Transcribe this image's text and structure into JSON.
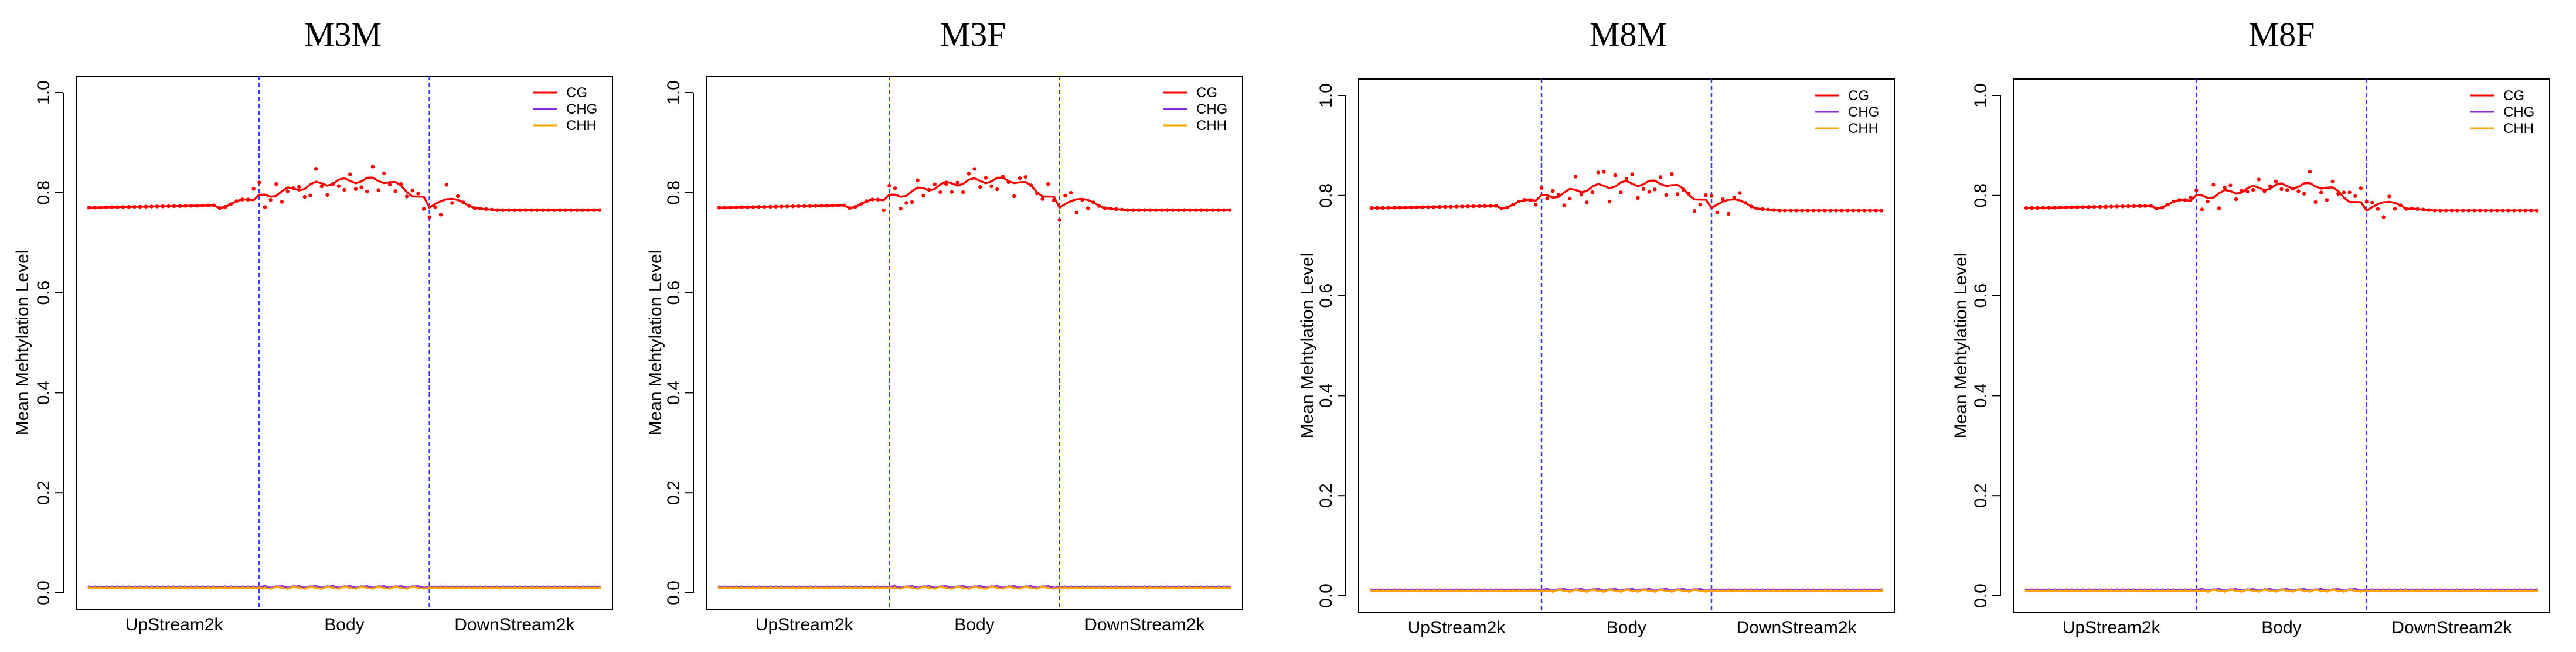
{
  "chart_data": [
    {
      "type": "line",
      "title": "M3M",
      "ylabel": "Mean Mehtylation Level",
      "xlabel": "",
      "ylim": [
        0,
        1
      ],
      "yticks": [
        "0.0",
        "0.2",
        "0.4",
        "0.6",
        "0.8",
        "1.0"
      ],
      "regions": [
        "UpStream2k",
        "Body",
        "DownStream2k"
      ],
      "boundaries_bins": [
        30,
        60
      ],
      "bins": 90,
      "legend": [
        "CG",
        "CHG",
        "CHH"
      ],
      "legend_position": "top-right",
      "colors": {
        "CG": "#ff0000",
        "CHG": "#8a2be2",
        "CHH": "#ffa500",
        "boundary": "#3333ff"
      },
      "series": [
        {
          "name": "CG",
          "upstream_level": 0.77,
          "body_level": 0.825,
          "downstream_level": 0.765,
          "dip_before_body": 0.79,
          "dip_at_end": 0.77,
          "scatter_max": 0.855,
          "scatter_min": 0.79
        },
        {
          "name": "CHG",
          "level": 0.012
        },
        {
          "name": "CHH",
          "level": 0.01
        }
      ]
    },
    {
      "type": "line",
      "title": "M3F",
      "ylabel": "Mean Mehtylation Level",
      "xlabel": "",
      "ylim": [
        0,
        1
      ],
      "yticks": [
        "0.0",
        "0.2",
        "0.4",
        "0.6",
        "0.8",
        "1.0"
      ],
      "regions": [
        "UpStream2k",
        "Body",
        "DownStream2k"
      ],
      "boundaries_bins": [
        30,
        60
      ],
      "bins": 90,
      "legend": [
        "CG",
        "CHG",
        "CHH"
      ],
      "legend_position": "top-right",
      "colors": {
        "CG": "#ff0000",
        "CHG": "#8a2be2",
        "CHH": "#ffa500",
        "boundary": "#3333ff"
      },
      "series": [
        {
          "name": "CG",
          "upstream_level": 0.77,
          "body_level": 0.825,
          "downstream_level": 0.765,
          "dip_before_body": 0.79,
          "dip_at_end": 0.77,
          "scatter_max": 0.85,
          "scatter_min": 0.79
        },
        {
          "name": "CHG",
          "level": 0.012
        },
        {
          "name": "CHH",
          "level": 0.01
        }
      ]
    },
    {
      "type": "line",
      "title": "M8M",
      "ylabel": "Mean Mehtylation Level",
      "xlabel": "",
      "ylim": [
        0,
        1
      ],
      "yticks": [
        "0.0",
        "0.2",
        "0.4",
        "0.6",
        "0.8",
        "1.0"
      ],
      "regions": [
        "UpStream2k",
        "Body",
        "DownStream2k"
      ],
      "boundaries_bins": [
        30,
        60
      ],
      "bins": 90,
      "legend": [
        "CG",
        "CHG",
        "CHH"
      ],
      "legend_position": "top-right",
      "colors": {
        "CG": "#ff0000",
        "CHG": "#8a2be2",
        "CHH": "#ffa500",
        "boundary": "#3333ff"
      },
      "series": [
        {
          "name": "CG",
          "upstream_level": 0.775,
          "body_level": 0.825,
          "downstream_level": 0.77,
          "dip_before_body": 0.795,
          "dip_at_end": 0.775,
          "scatter_max": 0.855,
          "scatter_min": 0.79
        },
        {
          "name": "CHG",
          "level": 0.012
        },
        {
          "name": "CHH",
          "level": 0.01
        }
      ]
    },
    {
      "type": "line",
      "title": "M8F",
      "ylabel": "Mean Mehtylation Level",
      "xlabel": "",
      "ylim": [
        0,
        1
      ],
      "yticks": [
        "0.0",
        "0.2",
        "0.4",
        "0.6",
        "0.8",
        "1.0"
      ],
      "regions": [
        "UpStream2k",
        "Body",
        "DownStream2k"
      ],
      "boundaries_bins": [
        30,
        60
      ],
      "bins": 90,
      "legend": [
        "CG",
        "CHG",
        "CHH"
      ],
      "legend_position": "top-right",
      "colors": {
        "CG": "#ff0000",
        "CHG": "#8a2be2",
        "CHH": "#ffa500",
        "boundary": "#3333ff"
      },
      "series": [
        {
          "name": "CG",
          "upstream_level": 0.775,
          "body_level": 0.82,
          "downstream_level": 0.77,
          "dip_before_body": 0.795,
          "dip_at_end": 0.77,
          "scatter_max": 0.85,
          "scatter_min": 0.78
        },
        {
          "name": "CHG",
          "level": 0.012
        },
        {
          "name": "CHH",
          "level": 0.01
        }
      ]
    }
  ]
}
